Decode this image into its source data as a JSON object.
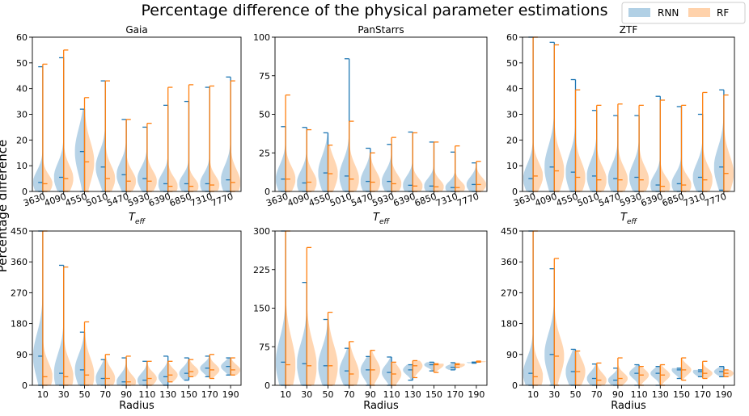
{
  "title": "Percentage difference of the physical parameter estimations",
  "ylabel": "Percentage difference",
  "legend": [
    {
      "name": "RNN",
      "color": "#1f77b4"
    },
    {
      "name": "RF",
      "color": "#ff7f0e"
    }
  ],
  "chart_data": [
    {
      "type": "violin",
      "title": "Gaia",
      "xlabel": "T_eff",
      "xsub": "eff",
      "xmain": "T",
      "categories": [
        "3630",
        "4090",
        "4550",
        "5010",
        "5470",
        "5930",
        "6390",
        "6850",
        "7310",
        "7770"
      ],
      "rotate_ticks": true,
      "ylim": [
        0,
        60
      ],
      "yticks": [
        0,
        10,
        20,
        30,
        40,
        50,
        60
      ],
      "series": [
        {
          "name": "RNN",
          "max": [
            48.5,
            52,
            32,
            43,
            28,
            25,
            33.5,
            35,
            40.5,
            44.5
          ],
          "median": [
            3.5,
            5.5,
            15.5,
            9.5,
            6.5,
            5,
            3,
            3,
            3,
            4.5
          ],
          "min": [
            0,
            0,
            0,
            0,
            0,
            0,
            0,
            0,
            0,
            0
          ],
          "spread": [
            4.5,
            5.5,
            9,
            6,
            5,
            4.5,
            4,
            3.5,
            4,
            5.5
          ]
        },
        {
          "name": "RF",
          "max": [
            49.5,
            55,
            36.5,
            43,
            28,
            26.5,
            40.5,
            41.5,
            41,
            43
          ],
          "median": [
            3,
            5,
            11.5,
            5,
            4,
            4,
            2,
            2,
            2.5,
            3.5
          ],
          "min": [
            0,
            0,
            0,
            0,
            0,
            0,
            0,
            0,
            0,
            0
          ],
          "spread": [
            3.5,
            5,
            8,
            5,
            4,
            4,
            3.5,
            3,
            3.5,
            5
          ]
        }
      ]
    },
    {
      "type": "violin",
      "title": "PanStarrs",
      "xlabel": "T_eff",
      "xsub": "eff",
      "xmain": "T",
      "categories": [
        "3630",
        "4090",
        "4550",
        "5010",
        "5470",
        "5930",
        "6390",
        "6850",
        "7310",
        "7770"
      ],
      "rotate_ticks": true,
      "ylim": [
        0,
        100
      ],
      "yticks": [
        0,
        25,
        50,
        75,
        100
      ],
      "series": [
        {
          "name": "RNN",
          "max": [
            42,
            41.5,
            38,
            86,
            28,
            30.5,
            38.5,
            32,
            25.5,
            18.5
          ],
          "median": [
            8,
            5.5,
            12,
            10,
            6.5,
            6.5,
            4,
            3.5,
            2.5,
            4.5
          ],
          "min": [
            0,
            0,
            0,
            0,
            0,
            0,
            0,
            0,
            0,
            0
          ],
          "spread": [
            9,
            8,
            11,
            10,
            8,
            7,
            6,
            5,
            4,
            5
          ]
        },
        {
          "name": "RF",
          "max": [
            62.5,
            40,
            30,
            45.5,
            25,
            35,
            38,
            32,
            29.5,
            19.5
          ],
          "median": [
            8,
            6,
            11.5,
            8,
            6,
            5,
            3.5,
            3,
            2.5,
            4.5
          ],
          "min": [
            0,
            0,
            0,
            0,
            0,
            0,
            0,
            0,
            0,
            0
          ],
          "spread": [
            8,
            7,
            10,
            9,
            7,
            6,
            5,
            4.5,
            4,
            4.5
          ]
        }
      ]
    },
    {
      "type": "violin",
      "title": "ZTF",
      "xlabel": "T_eff",
      "xsub": "eff",
      "xmain": "T",
      "categories": [
        "3630",
        "4090",
        "4550",
        "5010",
        "5470",
        "5930",
        "6390",
        "6850",
        "7310",
        "7770"
      ],
      "rotate_ticks": true,
      "ylim": [
        0,
        60
      ],
      "yticks": [
        0,
        10,
        20,
        30,
        40,
        50,
        60
      ],
      "series": [
        {
          "name": "RNN",
          "max": [
            60,
            58,
            43.5,
            31.5,
            29.5,
            29.5,
            37,
            33,
            30,
            39.5
          ],
          "median": [
            5,
            9.5,
            7.5,
            6,
            5,
            5.5,
            2.5,
            3,
            5.5,
            9.5
          ],
          "min": [
            0,
            0,
            0,
            0,
            0,
            0,
            0,
            0,
            0,
            0.5
          ],
          "spread": [
            5.5,
            8,
            7,
            6,
            5.5,
            5.5,
            4,
            4,
            5.5,
            7.5
          ]
        },
        {
          "name": "RF",
          "max": [
            60,
            57,
            39.5,
            33.5,
            34,
            33.5,
            35.5,
            33.5,
            38.5,
            37.5
          ],
          "median": [
            6,
            8,
            5.5,
            4.5,
            4.5,
            4.5,
            2,
            2.5,
            4.5,
            7
          ],
          "min": [
            0,
            0,
            0,
            0,
            0,
            0,
            0,
            0,
            0,
            0
          ],
          "spread": [
            5,
            7,
            6,
            5,
            5,
            5,
            3.5,
            3.5,
            5,
            7
          ]
        }
      ]
    },
    {
      "type": "violin",
      "title": "",
      "xlabel": "Radius",
      "categories": [
        "10",
        "30",
        "50",
        "70",
        "90",
        "110",
        "130",
        "150",
        "170",
        "190"
      ],
      "rotate_ticks": false,
      "ylim": [
        0,
        450
      ],
      "yticks": [
        0,
        90,
        180,
        270,
        360,
        450
      ],
      "series": [
        {
          "name": "RNN",
          "max": [
            450,
            350,
            155,
            75,
            80,
            70,
            85,
            80,
            85,
            80
          ],
          "median": [
            85,
            35,
            45,
            20,
            10,
            15,
            25,
            35,
            50,
            55
          ],
          "min": [
            0,
            0,
            0,
            0,
            0,
            0,
            0,
            15,
            25,
            30
          ],
          "spread": [
            65,
            55,
            45,
            30,
            22,
            20,
            20,
            18,
            15,
            15
          ]
        },
        {
          "name": "RF",
          "max": [
            450,
            345,
            185,
            90,
            85,
            70,
            70,
            75,
            90,
            80
          ],
          "median": [
            25,
            25,
            30,
            20,
            10,
            20,
            30,
            40,
            45,
            45
          ],
          "min": [
            0,
            0,
            0,
            0,
            0,
            0,
            10,
            25,
            20,
            30
          ],
          "spread": [
            40,
            45,
            50,
            28,
            20,
            18,
            17,
            16,
            16,
            15
          ]
        }
      ]
    },
    {
      "type": "violin",
      "title": "",
      "xlabel": "Radius",
      "categories": [
        "10",
        "30",
        "50",
        "70",
        "90",
        "110",
        "130",
        "150",
        "170",
        "190"
      ],
      "rotate_ticks": false,
      "ylim": [
        0,
        300
      ],
      "yticks": [
        0,
        75,
        150,
        225,
        300
      ],
      "series": [
        {
          "name": "RNN",
          "max": [
            300,
            200,
            128,
            72,
            56,
            55,
            40,
            45,
            44,
            45
          ],
          "median": [
            45,
            42,
            38,
            28,
            30,
            25,
            30,
            40,
            35,
            45
          ],
          "min": [
            0,
            0,
            0,
            0,
            0,
            0,
            10,
            28,
            30,
            43
          ],
          "spread": [
            45,
            40,
            35,
            25,
            18,
            15,
            10,
            6,
            5,
            3
          ]
        },
        {
          "name": "RF",
          "max": [
            300,
            268,
            142,
            85,
            68,
            45,
            48,
            42,
            42,
            47
          ],
          "median": [
            40,
            38,
            38,
            22,
            30,
            22,
            38,
            40,
            40,
            47
          ],
          "min": [
            0,
            0,
            0,
            0,
            0,
            0,
            15,
            25,
            35,
            45
          ],
          "spread": [
            50,
            45,
            40,
            28,
            20,
            16,
            12,
            8,
            5,
            3
          ]
        }
      ]
    },
    {
      "type": "violin",
      "title": "",
      "xlabel": "Radius",
      "categories": [
        "10",
        "30",
        "50",
        "70",
        "90",
        "110",
        "130",
        "150",
        "170",
        "190"
      ],
      "rotate_ticks": false,
      "ylim": [
        0,
        450
      ],
      "yticks": [
        0,
        90,
        180,
        270,
        360,
        450
      ],
      "series": [
        {
          "name": "RNN",
          "max": [
            450,
            340,
            105,
            62,
            50,
            60,
            55,
            50,
            45,
            55
          ],
          "median": [
            35,
            90,
            40,
            20,
            15,
            35,
            35,
            45,
            40,
            40
          ],
          "min": [
            0,
            0,
            0,
            0,
            0,
            0,
            0,
            20,
            25,
            25
          ],
          "spread": [
            45,
            60,
            40,
            20,
            15,
            15,
            14,
            14,
            12,
            11
          ]
        },
        {
          "name": "RF",
          "max": [
            450,
            370,
            100,
            65,
            80,
            55,
            60,
            80,
            70,
            45
          ],
          "median": [
            25,
            85,
            40,
            15,
            20,
            30,
            30,
            45,
            35,
            35
          ],
          "min": [
            0,
            0,
            0,
            0,
            0,
            0,
            0,
            15,
            20,
            25
          ],
          "spread": [
            40,
            55,
            38,
            20,
            16,
            16,
            15,
            15,
            12,
            11
          ]
        }
      ]
    }
  ]
}
